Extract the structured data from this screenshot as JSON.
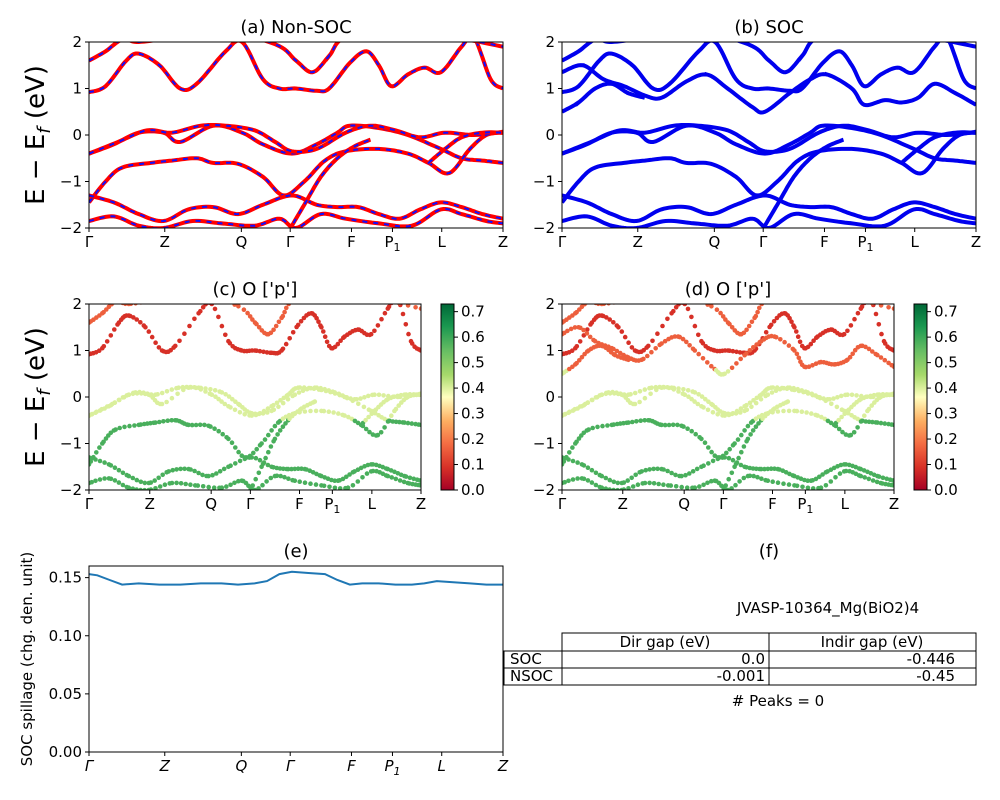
{
  "y_axis_label": "E − E",
  "y_axis_label_sub": "f",
  "y_axis_label_unit": " (eV)",
  "kpath_labels": [
    "Γ",
    "Z",
    "Q",
    "Γ",
    "F",
    "P",
    "L",
    "Z"
  ],
  "kpath_positions": [
    0,
    0.183,
    0.368,
    0.486,
    0.634,
    0.733,
    0.852,
    1.0
  ],
  "p1_subscript": "1",
  "energy_ticks": [
    "−2",
    "−1",
    "0",
    "1",
    "2"
  ],
  "colorbar_ticks": [
    "0.0",
    "0.1",
    "0.2",
    "0.3",
    "0.4",
    "0.5",
    "0.6",
    "0.7"
  ],
  "colors": {
    "nonsoc_line": "#ff0000",
    "nonsoc_dash": "#1010ff",
    "soc_line": "#0000ee",
    "spillage_line": "#1f77b4"
  },
  "chart_data": [
    {
      "id": "a",
      "type": "line",
      "title": "(a) Non-SOC",
      "ylim": [
        -2,
        2
      ],
      "series_style": "red solid with blue dashed overlay"
    },
    {
      "id": "b",
      "type": "line",
      "title": "(b) SOC",
      "ylim": [
        -2,
        2
      ],
      "series_style": "blue solid"
    },
    {
      "id": "c",
      "type": "scatter",
      "title": "(c)  O ['p']",
      "ylim": [
        -2,
        2
      ],
      "colormap": "RdYlGn",
      "clim": [
        0,
        0.73
      ]
    },
    {
      "id": "d",
      "type": "scatter",
      "title": "(d) O ['p']",
      "ylim": [
        -2,
        2
      ],
      "colormap": "RdYlGn",
      "clim": [
        0,
        0.73
      ]
    },
    {
      "id": "e",
      "type": "line",
      "title": "(e)",
      "ylabel": "SOC spillage (chg. den. unit)",
      "ylim": [
        0,
        0.16
      ],
      "y_ticks": [
        "0.00",
        "0.05",
        "0.10",
        "0.15"
      ],
      "x": [
        0,
        0.02,
        0.05,
        0.08,
        0.12,
        0.17,
        0.22,
        0.27,
        0.32,
        0.36,
        0.4,
        0.43,
        0.46,
        0.49,
        0.53,
        0.57,
        0.6,
        0.63,
        0.66,
        0.7,
        0.74,
        0.78,
        0.81,
        0.84,
        0.88,
        0.92,
        0.96,
        1.0
      ],
      "y": [
        0.153,
        0.152,
        0.148,
        0.144,
        0.145,
        0.144,
        0.144,
        0.145,
        0.145,
        0.144,
        0.145,
        0.147,
        0.153,
        0.155,
        0.154,
        0.153,
        0.148,
        0.144,
        0.145,
        0.145,
        0.144,
        0.144,
        0.145,
        0.147,
        0.146,
        0.145,
        0.144,
        0.144
      ]
    },
    {
      "id": "f",
      "type": "table",
      "title": "(f)",
      "caption": "JVASP-10364_Mg(BiO2)4",
      "columns": [
        "Dir gap (eV)",
        "Indir gap (eV)"
      ],
      "rows": [
        {
          "label": "SOC",
          "values": [
            "0.0",
            "-0.446"
          ]
        },
        {
          "label": "NSOC",
          "values": [
            "-0.001",
            "-0.45"
          ]
        }
      ],
      "footer": "# Peaks = 0"
    }
  ]
}
